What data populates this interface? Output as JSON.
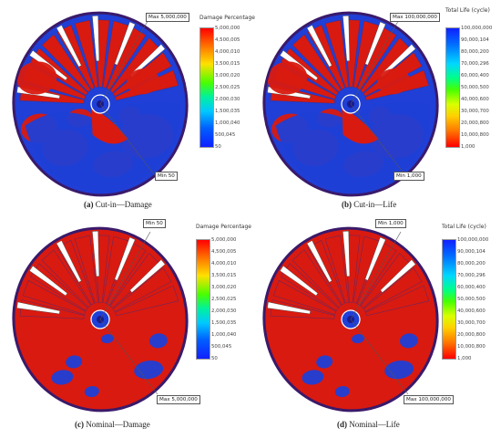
{
  "colors": {
    "damage_high": "#d91a10",
    "safe_blue": "#1f3fd6",
    "rim": "#3a1a6a",
    "slot": "#ffffff"
  },
  "panels": [
    {
      "id": "a",
      "type": "damage",
      "legend_title": "Damage Percentage",
      "ticks": [
        "5,000,000",
        "4,500,005",
        "4,000,010",
        "3,500,015",
        "3,000,020",
        "2,500,025",
        "2,000,030",
        "1,500,035",
        "1,000,040",
        "500,045",
        "50"
      ],
      "callout_max": {
        "label": "Max",
        "value": "5,000,000"
      },
      "callout_min": {
        "label": "Min",
        "value": "50"
      },
      "caption_letter": "(a)",
      "caption_text": "Cut-in—Damage",
      "red_fraction": 0.45
    },
    {
      "id": "b",
      "type": "life",
      "legend_title": "Total Life (cycle)",
      "ticks": [
        "100,000,000",
        "90,000,104",
        "80,000,200",
        "70,000,296",
        "60,000,400",
        "50,000,500",
        "40,000,600",
        "30,000,700",
        "20,000,800",
        "10,000,800",
        "1,000"
      ],
      "callout_max": {
        "label": "Max",
        "value": "100,000,000"
      },
      "callout_min": {
        "label": "Min",
        "value": "1,000"
      },
      "caption_letter": "(b)",
      "caption_text": "Cut-in—Life",
      "red_fraction": 0.45
    },
    {
      "id": "c",
      "type": "damage",
      "legend_title": "Damage Percentage",
      "ticks": [
        "5,000,000",
        "4,500,005",
        "4,000,010",
        "3,500,015",
        "3,000,020",
        "2,500,025",
        "2,000,030",
        "1,500,035",
        "1,000,040",
        "500,045",
        "50"
      ],
      "callout_max": {
        "label": "Max",
        "value": "5,000,000"
      },
      "callout_min": {
        "label": "Min",
        "value": "50"
      },
      "caption_letter": "(c)",
      "caption_text": "Nominal—Damage",
      "red_fraction": 0.85
    },
    {
      "id": "d",
      "type": "life",
      "legend_title": "Total Life (cycle)",
      "ticks": [
        "100,000,000",
        "90,000,104",
        "80,000,200",
        "70,000,296",
        "60,000,400",
        "50,000,500",
        "40,000,600",
        "30,000,700",
        "20,000,800",
        "10,000,800",
        "1,000"
      ],
      "callout_max": {
        "label": "Max",
        "value": "100,000,000"
      },
      "callout_min": {
        "label": "Min",
        "value": "1,000"
      },
      "caption_letter": "(d)",
      "caption_text": "Nominal—Life",
      "red_fraction": 0.85
    }
  ]
}
